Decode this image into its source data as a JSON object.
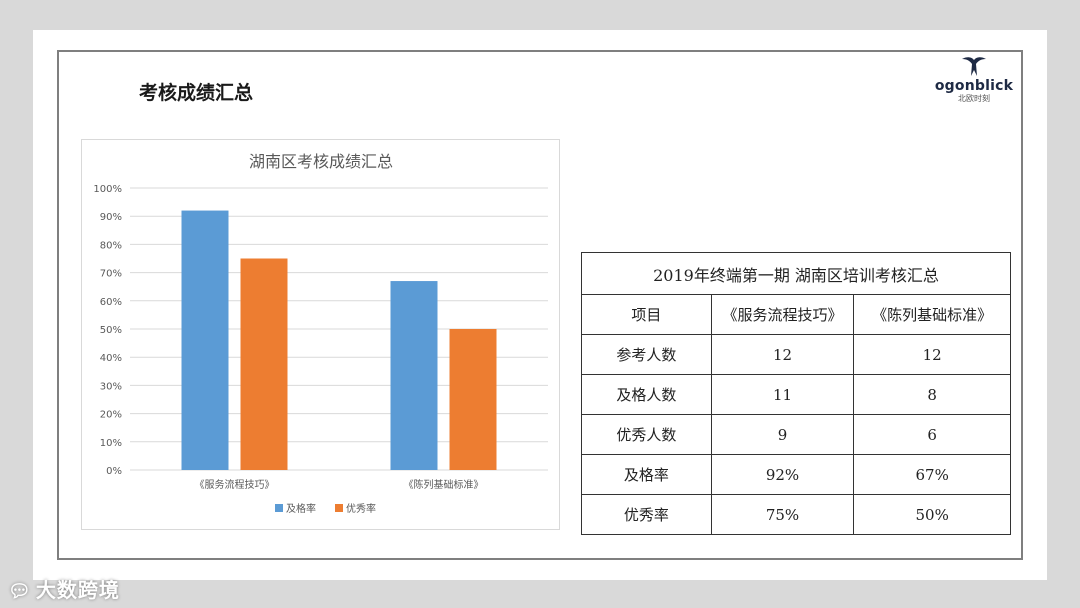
{
  "page": {
    "title": "考核成绩汇总"
  },
  "logo": {
    "main": "ogonblick",
    "sub": "北欧时刻"
  },
  "watermark": {
    "icon": "speech-bubble-icon",
    "text": "大数跨境"
  },
  "colors": {
    "series1": "#5b9bd5",
    "series2": "#ed7d31",
    "grid": "#d9d9d9",
    "text": "#595959"
  },
  "chart_data": {
    "type": "bar",
    "title": "湖南区考核成绩汇总",
    "categories": [
      "《服务流程技巧》",
      "《陈列基础标准》"
    ],
    "series": [
      {
        "name": "及格率",
        "values": [
          92,
          67
        ]
      },
      {
        "name": "优秀率",
        "values": [
          75,
          50
        ]
      }
    ],
    "ylim": [
      0,
      100
    ],
    "ytick_labels": [
      "0%",
      "10%",
      "20%",
      "30%",
      "40%",
      "50%",
      "60%",
      "70%",
      "80%",
      "90%",
      "100%"
    ],
    "grid": true,
    "legend": "bottom"
  },
  "table": {
    "caption": "2019年终端第一期 湖南区培训考核汇总",
    "header": [
      "项目",
      "《服务流程技巧》",
      "《陈列基础标准》"
    ],
    "rows": [
      [
        "参考人数",
        "12",
        "12"
      ],
      [
        "及格人数",
        "11",
        "8"
      ],
      [
        "优秀人数",
        "9",
        "6"
      ],
      [
        "及格率",
        "92%",
        "67%"
      ],
      [
        "优秀率",
        "75%",
        "50%"
      ]
    ]
  }
}
